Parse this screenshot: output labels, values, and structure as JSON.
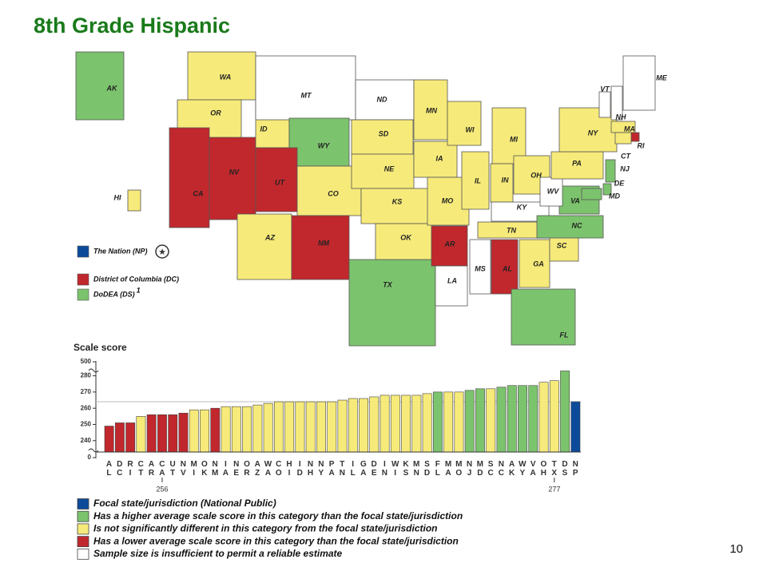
{
  "title": "8th Grade Hispanic",
  "page_number": 10,
  "map": {
    "states": [
      {
        "label": "AK",
        "color": "#7cc36d"
      },
      {
        "label": "HI",
        "color": "#f6ea7a"
      },
      {
        "label": "WA",
        "color": "#f6ea7a"
      },
      {
        "label": "OR",
        "color": "#f6ea7a"
      },
      {
        "label": "CA",
        "color": "#c0282d"
      },
      {
        "label": "NV",
        "color": "#c0282d"
      },
      {
        "label": "ID",
        "color": "#f6ea7a"
      },
      {
        "label": "MT",
        "color": "#ffffff"
      },
      {
        "label": "WY",
        "color": "#7cc36d"
      },
      {
        "label": "UT",
        "color": "#c0282d"
      },
      {
        "label": "CO",
        "color": "#f6ea7a"
      },
      {
        "label": "AZ",
        "color": "#f6ea7a"
      },
      {
        "label": "NM",
        "color": "#c0282d"
      },
      {
        "label": "ND",
        "color": "#ffffff"
      },
      {
        "label": "SD",
        "color": "#f6ea7a"
      },
      {
        "label": "NE",
        "color": "#f6ea7a"
      },
      {
        "label": "KS",
        "color": "#f6ea7a"
      },
      {
        "label": "TX",
        "color": "#7cc36d"
      },
      {
        "label": "OK",
        "color": "#f6ea7a"
      },
      {
        "label": "MN",
        "color": "#f6ea7a"
      },
      {
        "label": "IA",
        "color": "#f6ea7a"
      },
      {
        "label": "MO",
        "color": "#f6ea7a"
      },
      {
        "label": "AR",
        "color": "#c0282d"
      },
      {
        "label": "LA",
        "color": "#ffffff"
      },
      {
        "label": "WI",
        "color": "#f6ea7a"
      },
      {
        "label": "IL",
        "color": "#f6ea7a"
      },
      {
        "label": "MI",
        "color": "#f6ea7a"
      },
      {
        "label": "IN",
        "color": "#f6ea7a"
      },
      {
        "label": "OH",
        "color": "#f6ea7a"
      },
      {
        "label": "KY",
        "color": "#ffffff"
      },
      {
        "label": "TN",
        "color": "#f6ea7a"
      },
      {
        "label": "MS",
        "color": "#ffffff"
      },
      {
        "label": "AL",
        "color": "#c0282d"
      },
      {
        "label": "GA",
        "color": "#f6ea7a"
      },
      {
        "label": "FL",
        "color": "#7cc36d"
      },
      {
        "label": "SC",
        "color": "#f6ea7a"
      },
      {
        "label": "NC",
        "color": "#7cc36d"
      },
      {
        "label": "VA",
        "color": "#7cc36d"
      },
      {
        "label": "WV",
        "color": "#ffffff"
      },
      {
        "label": "PA",
        "color": "#f6ea7a"
      },
      {
        "label": "NY",
        "color": "#f6ea7a"
      },
      {
        "label": "VT",
        "color": "#ffffff"
      },
      {
        "label": "NH",
        "color": "#ffffff"
      },
      {
        "label": "ME",
        "color": "#ffffff"
      },
      {
        "label": "MA",
        "color": "#f6ea7a"
      },
      {
        "label": "RI",
        "color": "#c0282d"
      },
      {
        "label": "CT",
        "color": "#f6ea7a"
      },
      {
        "label": "NJ",
        "color": "#7cc36d"
      },
      {
        "label": "DE",
        "color": "#7cc36d"
      },
      {
        "label": "MD",
        "color": "#7cc36d"
      }
    ],
    "legend": [
      {
        "label": "The Nation (NP)",
        "color": "#0d4a9a"
      },
      {
        "label": "District of Columbia (DC)",
        "color": "#c0282d"
      },
      {
        "label": "DoDEA (DS)",
        "note": "1",
        "color": "#7cc36d"
      }
    ]
  },
  "chart_data": {
    "type": "bar",
    "title": "Scale score",
    "categories": [
      "AL",
      "DC",
      "RI",
      "CT",
      "AR",
      "CA",
      "UT",
      "NV",
      "MI",
      "OK",
      "NM",
      "IA",
      "NE",
      "OR",
      "AZ",
      "WA",
      "CO",
      "HI",
      "ID",
      "NH",
      "NY",
      "PA",
      "TN",
      "IL",
      "GA",
      "DE",
      "IN",
      "WI",
      "KS",
      "MN",
      "SD",
      "FL",
      "MA",
      "MO",
      "NJ",
      "MD",
      "SC",
      "NC",
      "AK",
      "WY",
      "VA",
      "OH",
      "TX",
      "DS",
      "NP"
    ],
    "values": [
      249,
      251,
      251,
      255,
      256,
      256,
      256,
      257,
      259,
      259,
      260,
      261,
      261,
      261,
      262,
      263,
      264,
      264,
      264,
      264,
      264,
      264,
      265,
      266,
      266,
      267,
      268,
      268,
      268,
      268,
      269,
      270,
      270,
      270,
      271,
      272,
      272,
      273,
      274,
      274,
      274,
      276,
      277,
      283,
      264
    ],
    "colors": [
      "#c0282d",
      "#c0282d",
      "#c0282d",
      "#f6ea7a",
      "#c0282d",
      "#c0282d",
      "#c0282d",
      "#c0282d",
      "#f6ea7a",
      "#f6ea7a",
      "#c0282d",
      "#f6ea7a",
      "#f6ea7a",
      "#f6ea7a",
      "#f6ea7a",
      "#f6ea7a",
      "#f6ea7a",
      "#f6ea7a",
      "#f6ea7a",
      "#f6ea7a",
      "#f6ea7a",
      "#f6ea7a",
      "#f6ea7a",
      "#f6ea7a",
      "#f6ea7a",
      "#f6ea7a",
      "#f6ea7a",
      "#f6ea7a",
      "#f6ea7a",
      "#f6ea7a",
      "#f6ea7a",
      "#7cc36d",
      "#f6ea7a",
      "#f6ea7a",
      "#7cc36d",
      "#7cc36d",
      "#f6ea7a",
      "#7cc36d",
      "#7cc36d",
      "#7cc36d",
      "#7cc36d",
      "#f6ea7a",
      "#f6ea7a",
      "#7cc36d",
      "#0d4a9a"
    ],
    "ylim": [
      233,
      282
    ],
    "yticks": [
      240,
      250,
      260,
      270,
      280
    ],
    "break_ticks": [
      500,
      0
    ],
    "annotations": [
      {
        "category": "CA",
        "label": "256"
      },
      {
        "category": "TX",
        "label": "277"
      }
    ],
    "legend": [
      {
        "label": "Focal state/jurisdiction (National Public)",
        "color": "#0d4a9a"
      },
      {
        "label": "Has a higher average scale score in this category than the focal state/jurisdiction",
        "color": "#7cc36d"
      },
      {
        "label": "Is not significantly different in this category from the focal state/jurisdiction",
        "color": "#f6ea7a"
      },
      {
        "label": "Has a lower average scale score in this category than the focal state/jurisdiction",
        "color": "#c0282d"
      },
      {
        "label": "Sample size is insufficient to permit a reliable estimate",
        "color": "#ffffff"
      }
    ]
  }
}
